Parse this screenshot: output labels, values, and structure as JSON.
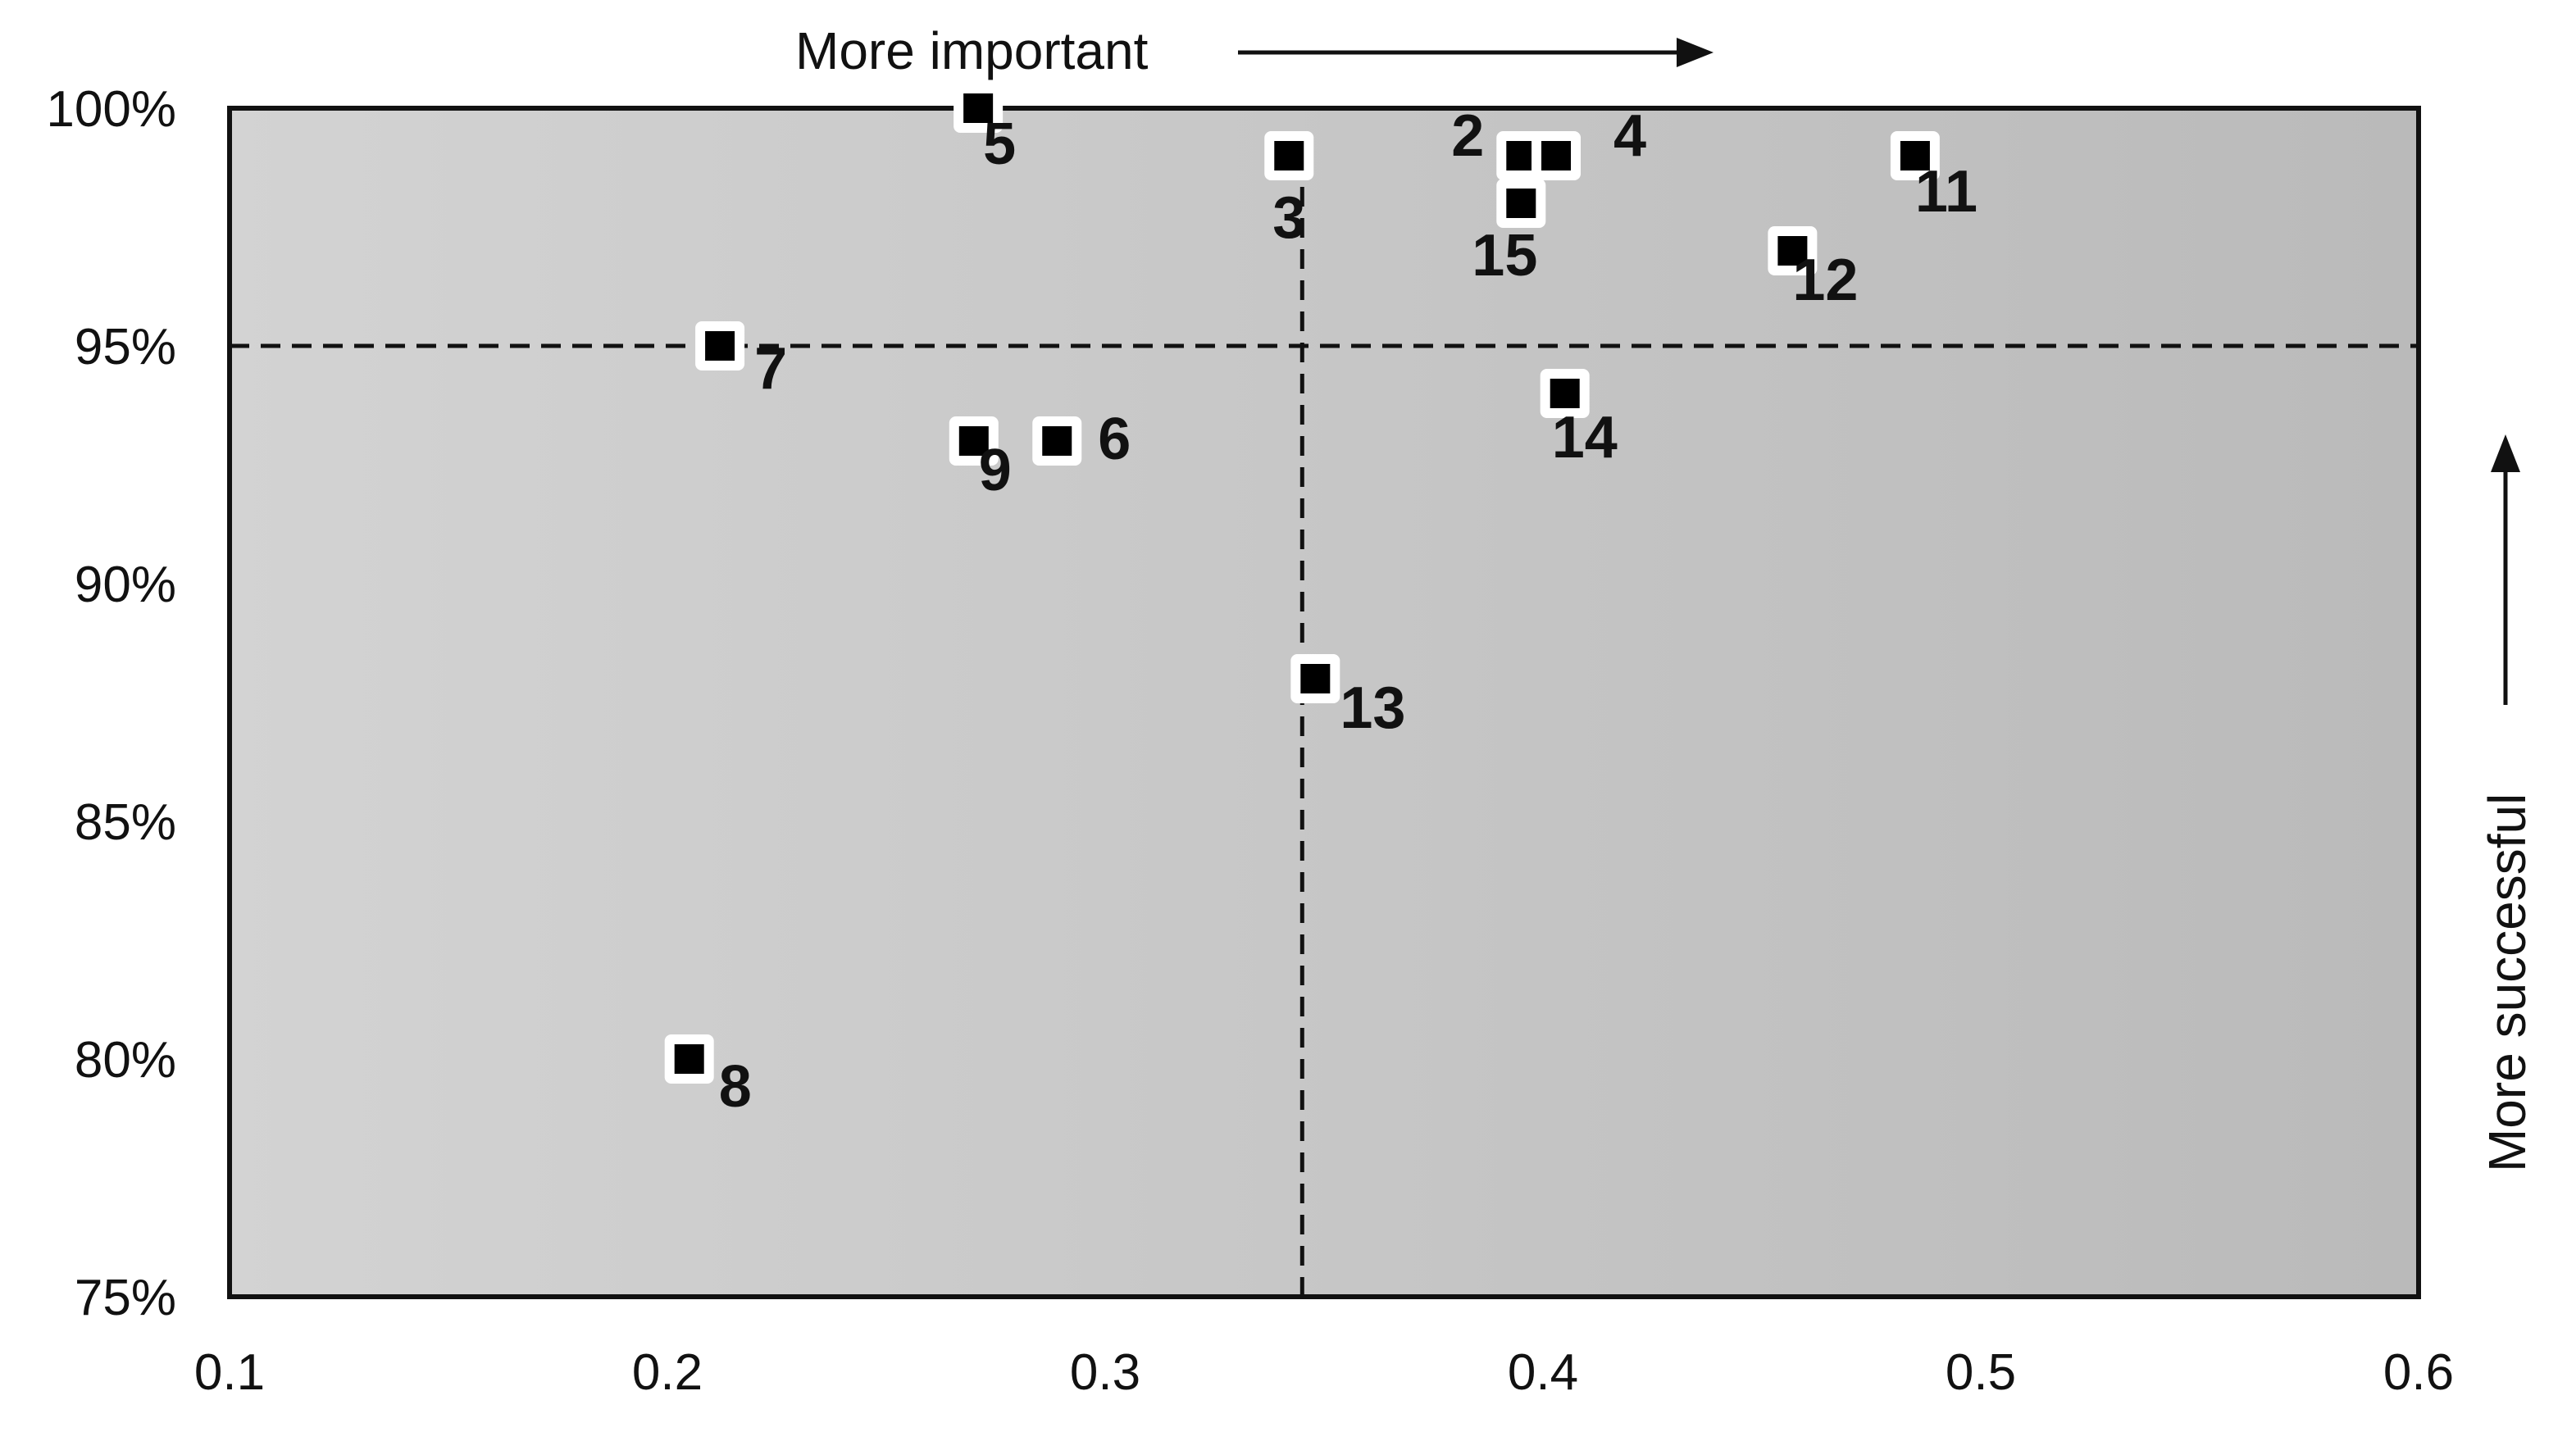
{
  "chart_data": {
    "type": "scatter",
    "xlim": [
      0.1,
      0.6
    ],
    "ylim": [
      75,
      100
    ],
    "x_ticks": [
      "0.1",
      "0.2",
      "0.3",
      "0.4",
      "0.5",
      "0.6"
    ],
    "y_ticks": [
      "75%",
      "80%",
      "85%",
      "90%",
      "95%",
      "100%"
    ],
    "grid": false,
    "reference_lines": {
      "x": 0.345,
      "y": 95
    },
    "annotations": {
      "x_direction": "More important",
      "y_direction": "More successful"
    },
    "points": [
      {
        "label": "2",
        "x": 0.395,
        "y": 99
      },
      {
        "label": "3",
        "x": 0.342,
        "y": 99
      },
      {
        "label": "4",
        "x": 0.403,
        "y": 99
      },
      {
        "label": "5",
        "x": 0.271,
        "y": 100
      },
      {
        "label": "6",
        "x": 0.289,
        "y": 93
      },
      {
        "label": "7",
        "x": 0.212,
        "y": 95
      },
      {
        "label": "8",
        "x": 0.205,
        "y": 80
      },
      {
        "label": "9",
        "x": 0.27,
        "y": 93
      },
      {
        "label": "11",
        "x": 0.485,
        "y": 99
      },
      {
        "label": "12",
        "x": 0.457,
        "y": 97
      },
      {
        "label": "13",
        "x": 0.348,
        "y": 88
      },
      {
        "label": "14",
        "x": 0.405,
        "y": 94
      },
      {
        "label": "15",
        "x": 0.395,
        "y": 98
      }
    ],
    "colors": {
      "marker": "#000000",
      "marker_outline": "#ffffff",
      "plot_bg_left": "#d2d2d2",
      "plot_bg_right": "#bdbdbd"
    }
  }
}
